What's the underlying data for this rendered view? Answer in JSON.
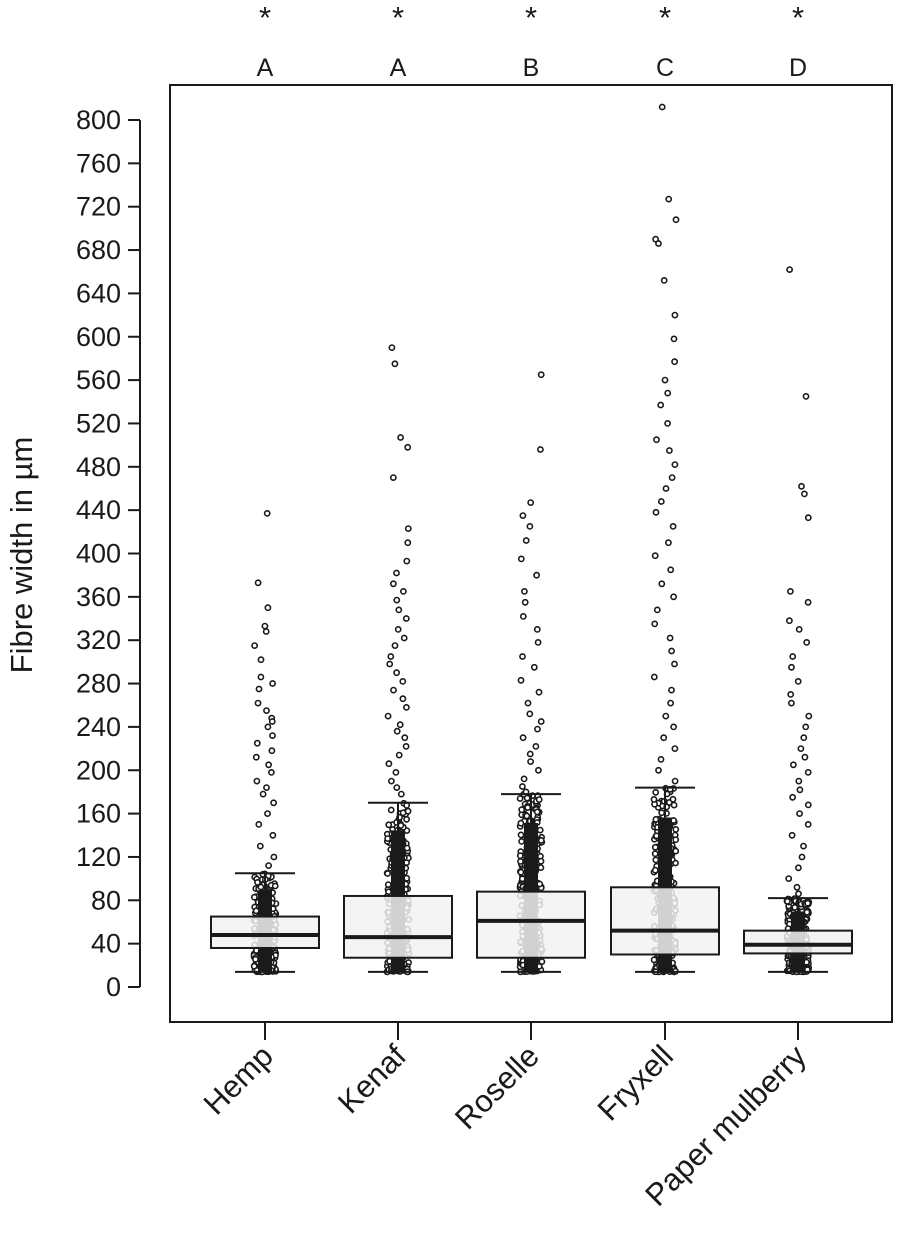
{
  "chart_data": {
    "type": "box",
    "title": "",
    "xlabel": "",
    "ylabel": "Fibre width in µm",
    "ylim": [
      -40,
      830
    ],
    "yticks": [
      0,
      40,
      80,
      120,
      160,
      200,
      240,
      280,
      320,
      360,
      400,
      440,
      480,
      520,
      560,
      600,
      640,
      680,
      720,
      760,
      800
    ],
    "grid": false,
    "legend": "none",
    "box_fill": "#f2f2f2",
    "line_color": "#1a1a1a",
    "categories": [
      "Hemp",
      "Kenaf",
      "Roselle",
      "Fryxell",
      "Paper mulberry"
    ],
    "significance_markers": [
      "*",
      "*",
      "*",
      "*",
      "*"
    ],
    "group_letters": [
      "A",
      "A",
      "B",
      "C",
      "D"
    ],
    "boxes": [
      {
        "name": "Hemp",
        "min": 14,
        "q1": 36,
        "median": 48,
        "q3": 65,
        "whisker_high": 105,
        "max": 437
      },
      {
        "name": "Kenaf",
        "min": 14,
        "q1": 27,
        "median": 46,
        "q3": 84,
        "whisker_high": 170,
        "max": 590
      },
      {
        "name": "Roselle",
        "min": 14,
        "q1": 27,
        "median": 61,
        "q3": 88,
        "whisker_high": 178,
        "max": 565
      },
      {
        "name": "Fryxell",
        "min": 14,
        "q1": 30,
        "median": 52,
        "q3": 92,
        "whisker_high": 184,
        "max": 812
      },
      {
        "name": "Paper mulberry",
        "min": 14,
        "q1": 31,
        "median": 39,
        "q3": 52,
        "whisker_high": 82,
        "max": 662
      }
    ],
    "outliers": [
      [
        437,
        373,
        350,
        333,
        328,
        315,
        302,
        286,
        280,
        275,
        262,
        255,
        248,
        245,
        240,
        232,
        225,
        218,
        212,
        205,
        198,
        190,
        184,
        178,
        170,
        160,
        150,
        140,
        130,
        120,
        112
      ],
      [
        590,
        575,
        507,
        498,
        470,
        423,
        410,
        393,
        382,
        372,
        365,
        357,
        348,
        340,
        330,
        322,
        315,
        305,
        298,
        290,
        282,
        274,
        266,
        258,
        250,
        242,
        236,
        230,
        222,
        214,
        206,
        198,
        190,
        184,
        178
      ],
      [
        565,
        496,
        447,
        435,
        425,
        412,
        395,
        380,
        365,
        355,
        342,
        330,
        318,
        305,
        295,
        283,
        272,
        262,
        252,
        245,
        238,
        230,
        222,
        215,
        208,
        200,
        192,
        185,
        180
      ],
      [
        812,
        727,
        708,
        690,
        686,
        652,
        620,
        598,
        577,
        560,
        548,
        537,
        520,
        505,
        495,
        482,
        470,
        460,
        448,
        438,
        425,
        410,
        398,
        385,
        372,
        360,
        348,
        335,
        322,
        310,
        298,
        286,
        274,
        262,
        250,
        240,
        230,
        220,
        210,
        200,
        190
      ],
      [
        662,
        545,
        462,
        455,
        433,
        365,
        355,
        338,
        330,
        318,
        305,
        295,
        282,
        270,
        262,
        250,
        240,
        230,
        220,
        212,
        205,
        198,
        190,
        182,
        175,
        168,
        160,
        150,
        140,
        130,
        120,
        110,
        100,
        92,
        86
      ]
    ]
  }
}
